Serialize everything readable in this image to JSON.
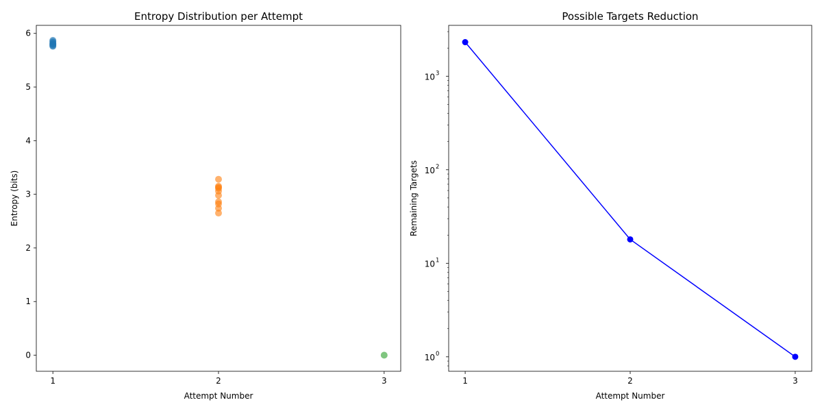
{
  "colors": {
    "attempt1": "#1f77b4",
    "attempt2": "#ff7f0e",
    "attempt3": "#2ca02c",
    "reduction_line": "#0000ff"
  },
  "chart_data": [
    {
      "type": "scatter",
      "title": "Entropy Distribution per Attempt",
      "xlabel": "Attempt Number",
      "ylabel": "Entropy (bits)",
      "xlim": [
        0.9,
        3.1
      ],
      "ylim": [
        -0.3,
        6.15
      ],
      "xticks": [
        1,
        2,
        3
      ],
      "yticks": [
        0,
        1,
        2,
        3,
        4,
        5,
        6
      ],
      "grid": false,
      "series": [
        {
          "x": 1,
          "values": [
            5.87,
            5.85,
            5.83,
            5.81,
            5.8,
            5.79,
            5.77,
            5.76
          ],
          "color_key": "attempt1",
          "alpha": 0.6
        },
        {
          "x": 2,
          "values": [
            3.28,
            3.15,
            3.13,
            3.11,
            3.06,
            2.98,
            2.86,
            2.82,
            2.74,
            2.65
          ],
          "color_key": "attempt2",
          "alpha": 0.6
        },
        {
          "x": 3,
          "values": [
            0.0
          ],
          "color_key": "attempt3",
          "alpha": 0.6
        }
      ]
    },
    {
      "type": "line",
      "title": "Possible Targets Reduction",
      "xlabel": "Attempt Number",
      "ylabel": "Remaining Targets",
      "yscale": "log",
      "xlim": [
        0.9,
        3.1
      ],
      "ylim": [
        0.7,
        3500
      ],
      "xticks": [
        1,
        2,
        3
      ],
      "yticks": [
        1,
        10,
        100,
        1000
      ],
      "ytick_labels": [
        {
          "base": "10",
          "exp": "0"
        },
        {
          "base": "10",
          "exp": "1"
        },
        {
          "base": "10",
          "exp": "2"
        },
        {
          "base": "10",
          "exp": "3"
        }
      ],
      "grid": false,
      "marker": "circle",
      "x": [
        1,
        2,
        3
      ],
      "values": [
        2315,
        18,
        1
      ],
      "color_key": "reduction_line"
    }
  ]
}
